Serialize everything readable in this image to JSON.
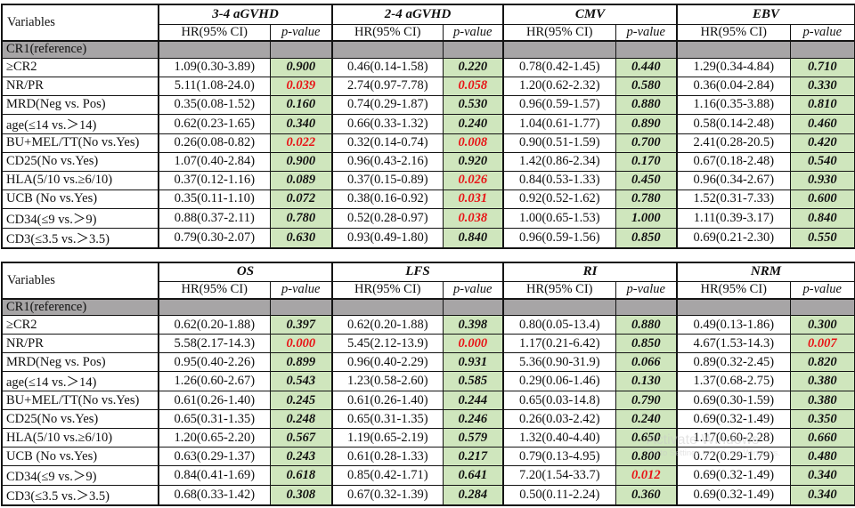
{
  "colors": {
    "p_cell_bg": "#cfe6bd",
    "reference_row_bg": "#a7a5a6",
    "significant_text": "#e81416",
    "border": "#141414"
  },
  "watermark": {
    "line1": "Activate Windows",
    "line2": "Go to Settings to activate Windows."
  },
  "tables": [
    {
      "variables_header": "Variables",
      "reference_label": "CR1(reference)",
      "sub_headers": {
        "hr": "HR(95% CI)",
        "p": "p-value"
      },
      "groups": [
        "3-4 aGVHD",
        "2-4 aGVHD",
        "CMV",
        "EBV"
      ],
      "rows": [
        {
          "label": "≥CR2",
          "cells": [
            {
              "hr": "1.09(0.30-3.89)",
              "p": "0.900",
              "sig": false
            },
            {
              "hr": "0.46(0.14-1.58)",
              "p": "0.220",
              "sig": false
            },
            {
              "hr": "0.78(0.42-1.45)",
              "p": "0.440",
              "sig": false
            },
            {
              "hr": "1.29(0.34-4.84)",
              "p": "0.710",
              "sig": false
            }
          ]
        },
        {
          "label": "NR/PR",
          "cells": [
            {
              "hr": "5.11(1.08-24.0)",
              "p": "0.039",
              "sig": true
            },
            {
              "hr": "2.74(0.97-7.78)",
              "p": "0.058",
              "sig": true
            },
            {
              "hr": "1.20(0.62-2.32)",
              "p": "0.580",
              "sig": false
            },
            {
              "hr": "0.36(0.04-2.84)",
              "p": "0.330",
              "sig": false
            }
          ]
        },
        {
          "label": "MRD(Neg vs. Pos)",
          "cells": [
            {
              "hr": "0.35(0.08-1.52)",
              "p": "0.160",
              "sig": false
            },
            {
              "hr": "0.74(0.29-1.87)",
              "p": "0.530",
              "sig": false
            },
            {
              "hr": "0.96(0.59-1.57)",
              "p": "0.880",
              "sig": false
            },
            {
              "hr": "1.16(0.35-3.88)",
              "p": "0.810",
              "sig": false
            }
          ]
        },
        {
          "label": "age(≤14 vs.＞14)",
          "cells": [
            {
              "hr": "0.62(0.23-1.65)",
              "p": "0.340",
              "sig": false
            },
            {
              "hr": "0.66(0.33-1.32)",
              "p": "0.240",
              "sig": false
            },
            {
              "hr": "1.04(0.61-1.77)",
              "p": "0.890",
              "sig": false
            },
            {
              "hr": "0.58(0.14-2.48)",
              "p": "0.460",
              "sig": false
            }
          ]
        },
        {
          "label": "BU+MEL/TT(No vs.Yes)",
          "cells": [
            {
              "hr": "0.26(0.08-0.82)",
              "p": "0.022",
              "sig": true
            },
            {
              "hr": "0.32(0.14-0.74)",
              "p": "0.008",
              "sig": true
            },
            {
              "hr": "0.90(0.51-1.59)",
              "p": "0.700",
              "sig": false
            },
            {
              "hr": "2.41(0.28-20.5)",
              "p": "0.420",
              "sig": false
            }
          ]
        },
        {
          "label": "CD25(No vs.Yes)",
          "cells": [
            {
              "hr": "1.07(0.40-2.84)",
              "p": "0.900",
              "sig": false
            },
            {
              "hr": "0.96(0.43-2.16)",
              "p": "0.920",
              "sig": false
            },
            {
              "hr": "1.42(0.86-2.34)",
              "p": "0.170",
              "sig": false
            },
            {
              "hr": "0.67(0.18-2.48)",
              "p": "0.540",
              "sig": false
            }
          ]
        },
        {
          "label": "HLA(5/10 vs.≥6/10)",
          "cells": [
            {
              "hr": "0.37(0.12-1.16)",
              "p": "0.089",
              "sig": false
            },
            {
              "hr": "0.37(0.15-0.89)",
              "p": "0.026",
              "sig": true
            },
            {
              "hr": "0.84(0.53-1.33)",
              "p": "0.450",
              "sig": false
            },
            {
              "hr": "0.96(0.34-2.67)",
              "p": "0.930",
              "sig": false
            }
          ]
        },
        {
          "label": "UCB (No vs.Yes)",
          "cells": [
            {
              "hr": "0.35(0.11-1.10)",
              "p": "0.072",
              "sig": false
            },
            {
              "hr": "0.38(0.16-0.92)",
              "p": "0.031",
              "sig": true
            },
            {
              "hr": "0.92(0.52-1.62)",
              "p": "0.780",
              "sig": false
            },
            {
              "hr": "1.52(0.31-7.33)",
              "p": "0.600",
              "sig": false
            }
          ]
        },
        {
          "label": "CD34(≤9 vs.＞9)",
          "cells": [
            {
              "hr": "0.88(0.37-2.11)",
              "p": "0.780",
              "sig": false
            },
            {
              "hr": "0.52(0.28-0.97)",
              "p": "0.038",
              "sig": true
            },
            {
              "hr": "1.00(0.65-1.53)",
              "p": "1.000",
              "sig": false
            },
            {
              "hr": "1.11(0.39-3.17)",
              "p": "0.840",
              "sig": false
            }
          ]
        },
        {
          "label": "CD3(≤3.5 vs.＞3.5)",
          "cells": [
            {
              "hr": "0.79(0.30-2.07)",
              "p": "0.630",
              "sig": false
            },
            {
              "hr": "0.93(0.49-1.80)",
              "p": "0.840",
              "sig": false
            },
            {
              "hr": "0.96(0.59-1.56)",
              "p": "0.850",
              "sig": false
            },
            {
              "hr": "0.69(0.21-2.30)",
              "p": "0.550",
              "sig": false
            }
          ]
        }
      ]
    },
    {
      "variables_header": "Variables",
      "reference_label": "CR1(reference)",
      "sub_headers": {
        "hr": "HR(95% CI)",
        "p": "p-value"
      },
      "groups": [
        "OS",
        "LFS",
        "RI",
        "NRM"
      ],
      "rows": [
        {
          "label": "≥CR2",
          "cells": [
            {
              "hr": "0.62(0.20-1.88)",
              "p": "0.397",
              "sig": false
            },
            {
              "hr": "0.62(0.20-1.88)",
              "p": "0.398",
              "sig": false
            },
            {
              "hr": "0.80(0.05-13.4)",
              "p": "0.880",
              "sig": false
            },
            {
              "hr": "0.49(0.13-1.86)",
              "p": "0.300",
              "sig": false
            }
          ]
        },
        {
          "label": "NR/PR",
          "cells": [
            {
              "hr": "5.58(2.17-14.3)",
              "p": "0.000",
              "sig": true
            },
            {
              "hr": "5.45(2.12-13.9)",
              "p": "0.000",
              "sig": true
            },
            {
              "hr": "1.17(0.21-6.42)",
              "p": "0.850",
              "sig": false
            },
            {
              "hr": "4.67(1.53-14.3)",
              "p": "0.007",
              "sig": true
            }
          ]
        },
        {
          "label": "MRD(Neg vs. Pos)",
          "cells": [
            {
              "hr": "0.95(0.40-2.26)",
              "p": "0.899",
              "sig": false
            },
            {
              "hr": "0.96(0.40-2.29)",
              "p": "0.931",
              "sig": false
            },
            {
              "hr": "5.36(0.90-31.9)",
              "p": "0.066",
              "sig": false
            },
            {
              "hr": "0.89(0.32-2.45)",
              "p": "0.820",
              "sig": false
            }
          ]
        },
        {
          "label": "age(≤14 vs.＞14)",
          "cells": [
            {
              "hr": "1.26(0.60-2.67)",
              "p": "0.543",
              "sig": false
            },
            {
              "hr": "1.23(0.58-2.60)",
              "p": "0.585",
              "sig": false
            },
            {
              "hr": "0.29(0.06-1.46)",
              "p": "0.130",
              "sig": false
            },
            {
              "hr": "1.37(0.68-2.75)",
              "p": "0.380",
              "sig": false
            }
          ]
        },
        {
          "label": "BU+MEL/TT(No vs.Yes)",
          "cells": [
            {
              "hr": "0.61(0.26-1.40)",
              "p": "0.245",
              "sig": false
            },
            {
              "hr": "0.61(0.26-1.40)",
              "p": "0.244",
              "sig": false
            },
            {
              "hr": "0.65(0.03-14.8)",
              "p": "0.790",
              "sig": false
            },
            {
              "hr": "0.69(0.30-1.59)",
              "p": "0.380",
              "sig": false
            }
          ]
        },
        {
          "label": "CD25(No vs.Yes)",
          "cells": [
            {
              "hr": "0.65(0.31-1.35)",
              "p": "0.248",
              "sig": false
            },
            {
              "hr": "0.65(0.31-1.35)",
              "p": "0.246",
              "sig": false
            },
            {
              "hr": "0.26(0.03-2.42)",
              "p": "0.240",
              "sig": false
            },
            {
              "hr": "0.69(0.32-1.49)",
              "p": "0.350",
              "sig": false
            }
          ]
        },
        {
          "label": "HLA(5/10 vs.≥6/10)",
          "cells": [
            {
              "hr": "1.20(0.65-2.20)",
              "p": "0.567",
              "sig": false
            },
            {
              "hr": "1.19(0.65-2.19)",
              "p": "0.579",
              "sig": false
            },
            {
              "hr": "1.32(0.40-4.40)",
              "p": "0.650",
              "sig": false
            },
            {
              "hr": "1.17(0.60-2.28)",
              "p": "0.660",
              "sig": false
            }
          ]
        },
        {
          "label": "UCB (No vs.Yes)",
          "cells": [
            {
              "hr": "0.63(0.29-1.37)",
              "p": "0.243",
              "sig": false
            },
            {
              "hr": "0.61(0.28-1.33)",
              "p": "0.217",
              "sig": false
            },
            {
              "hr": "0.79(0.13-4.95)",
              "p": "0.800",
              "sig": false
            },
            {
              "hr": "0.72(0.29-1.79)",
              "p": "0.480",
              "sig": false
            }
          ]
        },
        {
          "label": "CD34(≤9 vs.＞9)",
          "cells": [
            {
              "hr": "0.84(0.41-1.69)",
              "p": "0.618",
              "sig": false
            },
            {
              "hr": "0.85(0.42-1.71)",
              "p": "0.641",
              "sig": false
            },
            {
              "hr": "7.20(1.54-33.7)",
              "p": "0.012",
              "sig": true
            },
            {
              "hr": "0.69(0.32-1.49)",
              "p": "0.340",
              "sig": false
            }
          ]
        },
        {
          "label": "CD3(≤3.5 vs.＞3.5)",
          "cells": [
            {
              "hr": "0.68(0.33-1.42)",
              "p": "0.308",
              "sig": false
            },
            {
              "hr": "0.67(0.32-1.39)",
              "p": "0.284",
              "sig": false
            },
            {
              "hr": "0.50(0.11-2.24)",
              "p": "0.360",
              "sig": false
            },
            {
              "hr": "0.69(0.32-1.49)",
              "p": "0.340",
              "sig": false
            }
          ]
        }
      ]
    }
  ]
}
